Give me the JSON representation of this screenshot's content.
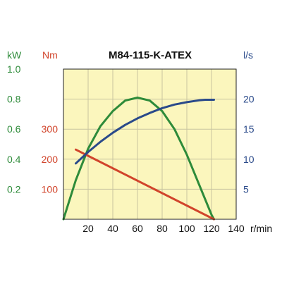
{
  "chart_data": {
    "type": "line",
    "title": "M84-115-K-ATEX",
    "grid": true,
    "background_color": "#fbf6bd",
    "grid_color": "#c8c4a0",
    "x": {
      "unit": "r/min",
      "range": [
        0,
        140
      ],
      "ticks": [
        20,
        40,
        60,
        80,
        100,
        120,
        140
      ],
      "tick_labels": [
        "20",
        "40",
        "60",
        "80",
        "100",
        "120",
        "140"
      ]
    },
    "y_axes": [
      {
        "id": "power",
        "unit": "kW",
        "color": "#2e8b3a",
        "range": [
          0,
          1.0
        ],
        "ticks": [
          0.2,
          0.4,
          0.6,
          0.8,
          1.0
        ],
        "tick_labels": [
          "0.2",
          "0.4",
          "0.6",
          "0.8",
          "1.0"
        ]
      },
      {
        "id": "torque",
        "unit": "Nm",
        "color": "#d1442b",
        "range": [
          0,
          500
        ],
        "ticks": [
          100,
          200,
          300
        ],
        "tick_labels": [
          "100",
          "200",
          "300"
        ]
      },
      {
        "id": "flow",
        "unit": "l/s",
        "color": "#2a4a8a",
        "range": [
          0,
          25
        ],
        "ticks": [
          5,
          10,
          15,
          20
        ],
        "tick_labels": [
          "5",
          "10",
          "15",
          "20"
        ]
      }
    ],
    "series": [
      {
        "axis": "power",
        "color": "#2e8b3a",
        "x": [
          0,
          10,
          20,
          30,
          40,
          50,
          60,
          70,
          80,
          90,
          100,
          110,
          120,
          122
        ],
        "y": [
          0.0,
          0.26,
          0.47,
          0.62,
          0.72,
          0.79,
          0.81,
          0.79,
          0.72,
          0.6,
          0.43,
          0.23,
          0.03,
          0.0
        ]
      },
      {
        "axis": "torque",
        "color": "#d1442b",
        "x": [
          10,
          122
        ],
        "y": [
          232,
          0
        ]
      },
      {
        "axis": "flow",
        "color": "#2a4a8a",
        "x": [
          10,
          20,
          30,
          40,
          50,
          60,
          70,
          80,
          90,
          100,
          110,
          115,
          122
        ],
        "y": [
          9.3,
          11.2,
          12.9,
          14.4,
          15.7,
          16.8,
          17.7,
          18.5,
          19.1,
          19.5,
          19.8,
          19.9,
          19.9
        ]
      }
    ]
  }
}
